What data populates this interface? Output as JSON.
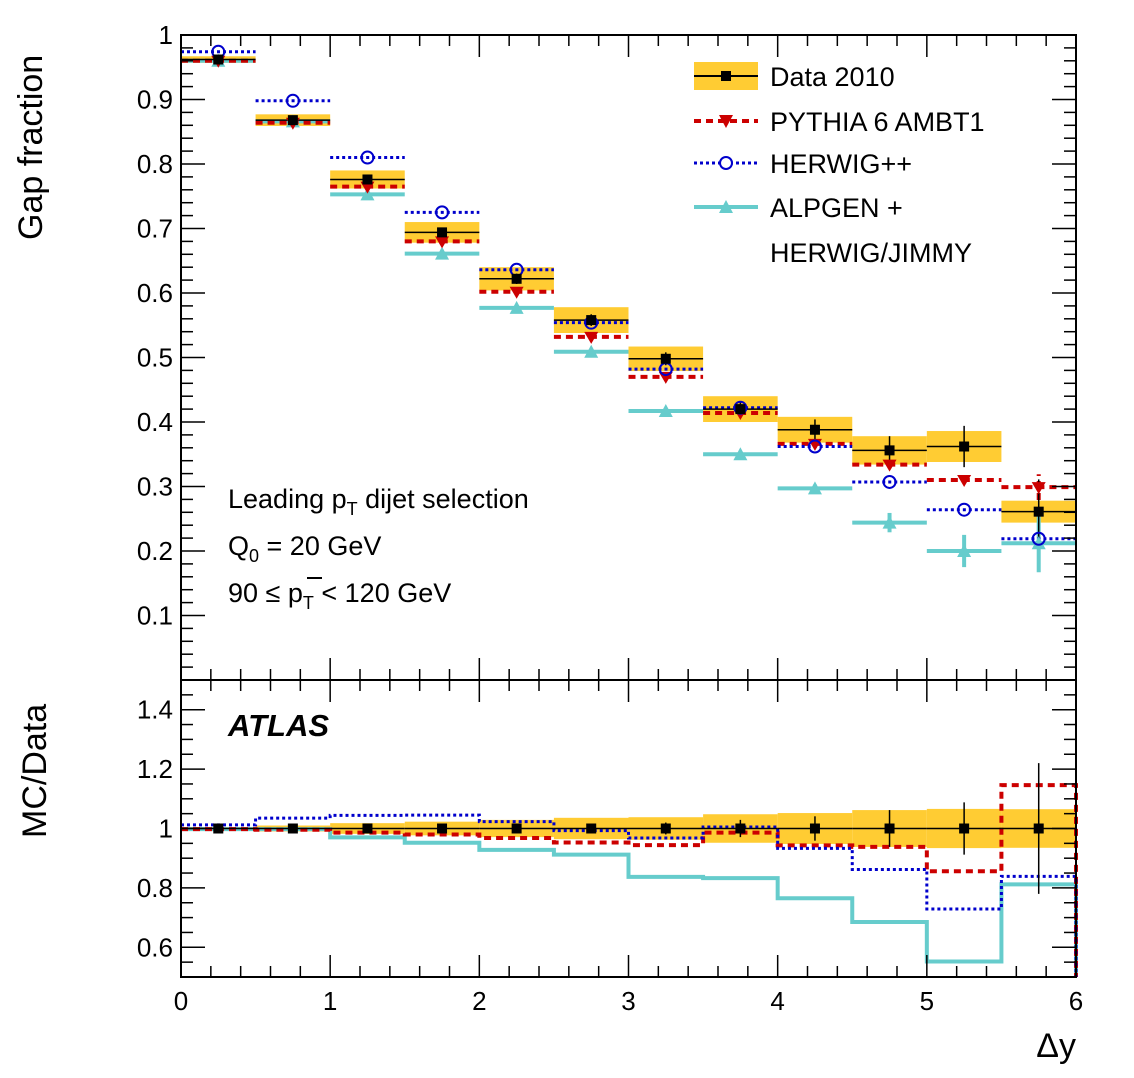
{
  "chart_data": [
    {
      "type": "step",
      "panel": "main",
      "ylabel": "Gap fraction",
      "xlabel": "Δy",
      "xlim": [
        0,
        6
      ],
      "ylim": [
        0,
        1
      ],
      "bin_edges": [
        0,
        0.5,
        1,
        1.5,
        2,
        2.5,
        3,
        3.5,
        4,
        4.5,
        5,
        5.5,
        6
      ],
      "y_tick_labels": [
        "0.1",
        "0.2",
        "0.3",
        "0.4",
        "0.5",
        "0.6",
        "0.7",
        "0.8",
        "0.9",
        "1"
      ],
      "series": [
        {
          "name": "Data 2010",
          "color": "#000000",
          "band_color": "#ffcc33",
          "values": [
            0.962,
            0.868,
            0.776,
            0.694,
            0.622,
            0.558,
            0.498,
            0.42,
            0.388,
            0.356,
            0.362,
            0.261
          ],
          "stat_err": [
            0.004,
            0.005,
            0.006,
            0.007,
            0.008,
            0.009,
            0.01,
            0.012,
            0.016,
            0.022,
            0.032,
            0.05
          ],
          "syst_err": [
            0.005,
            0.009,
            0.014,
            0.016,
            0.018,
            0.02,
            0.019,
            0.02,
            0.02,
            0.022,
            0.024,
            0.017
          ]
        },
        {
          "name": "PYTHIA 6 AMBT1",
          "color": "#cc0000",
          "values": [
            0.96,
            0.864,
            0.765,
            0.68,
            0.602,
            0.532,
            0.47,
            0.414,
            0.366,
            0.334,
            0.31,
            0.299
          ],
          "stat_err": [
            0,
            0,
            0,
            0,
            0,
            0,
            0,
            0,
            0,
            0,
            0,
            0.02
          ]
        },
        {
          "name": "HERWIG++",
          "color": "#0000cc",
          "values": [
            0.974,
            0.898,
            0.81,
            0.725,
            0.636,
            0.554,
            0.482,
            0.422,
            0.362,
            0.307,
            0.264,
            0.219
          ]
        },
        {
          "name": "ALPGEN + HERWIG/JIMMY",
          "color": "#66cccc",
          "values": [
            0.96,
            0.866,
            0.753,
            0.661,
            0.577,
            0.509,
            0.417,
            0.35,
            0.297,
            0.244,
            0.2,
            0.212
          ],
          "stat_err": [
            0,
            0,
            0,
            0,
            0,
            0,
            0,
            0,
            0.006,
            0.015,
            0.025,
            0.045
          ]
        }
      ],
      "legend": {
        "position": "top-right",
        "entries": [
          "Data 2010",
          "PYTHIA 6 AMBT1",
          "HERWIG++",
          "ALPGEN +",
          "HERWIG/JIMMY"
        ]
      },
      "annotations": {
        "selection": "Leading p",
        "selection_sub": "T",
        "selection_rest": " dijet selection",
        "q0": "Q",
        "q0_sub": "0",
        "q0_rest": " = 20 GeV",
        "pt_range_pre": "90 ≤ ",
        "pt_range_p": "p",
        "pt_range_sub": "T",
        "pt_range_rest": " < 120 GeV"
      }
    },
    {
      "type": "step",
      "panel": "ratio",
      "ylabel": "MC/Data",
      "xlabel": "Δy",
      "xlim": [
        0,
        6
      ],
      "ylim": [
        0.5,
        1.5
      ],
      "bin_edges": [
        0,
        0.5,
        1,
        1.5,
        2,
        2.5,
        3,
        3.5,
        4,
        4.5,
        5,
        5.5,
        6
      ],
      "y_tick_labels": [
        "0.6",
        "0.8",
        "1",
        "1.2",
        "1.4"
      ],
      "x_tick_labels": [
        "0",
        "1",
        "2",
        "3",
        "4",
        "5",
        "6"
      ],
      "label": "ATLAS",
      "series": [
        {
          "name": "Data 2010",
          "values": [
            1,
            1,
            1,
            1,
            1,
            1,
            1,
            1,
            1,
            1,
            1,
            1
          ],
          "stat_err": [
            0.004,
            0.006,
            0.008,
            0.01,
            0.013,
            0.016,
            0.02,
            0.029,
            0.041,
            0.062,
            0.088,
            0.22
          ],
          "syst_err": [
            0.005,
            0.01,
            0.018,
            0.023,
            0.029,
            0.036,
            0.038,
            0.048,
            0.052,
            0.062,
            0.066,
            0.065
          ]
        },
        {
          "name": "PYTHIA 6 AMBT1",
          "values": [
            0.998,
            0.996,
            0.986,
            0.98,
            0.968,
            0.953,
            0.944,
            0.986,
            0.943,
            0.938,
            0.856,
            1.146
          ]
        },
        {
          "name": "HERWIG++",
          "values": [
            1.012,
            1.035,
            1.044,
            1.045,
            1.023,
            0.993,
            0.968,
            1.005,
            0.933,
            0.862,
            0.729,
            0.839
          ]
        },
        {
          "name": "ALPGEN + HERWIG/JIMMY",
          "values": [
            0.998,
            0.998,
            0.97,
            0.952,
            0.928,
            0.912,
            0.837,
            0.833,
            0.765,
            0.685,
            0.552,
            0.812
          ]
        }
      ]
    }
  ]
}
